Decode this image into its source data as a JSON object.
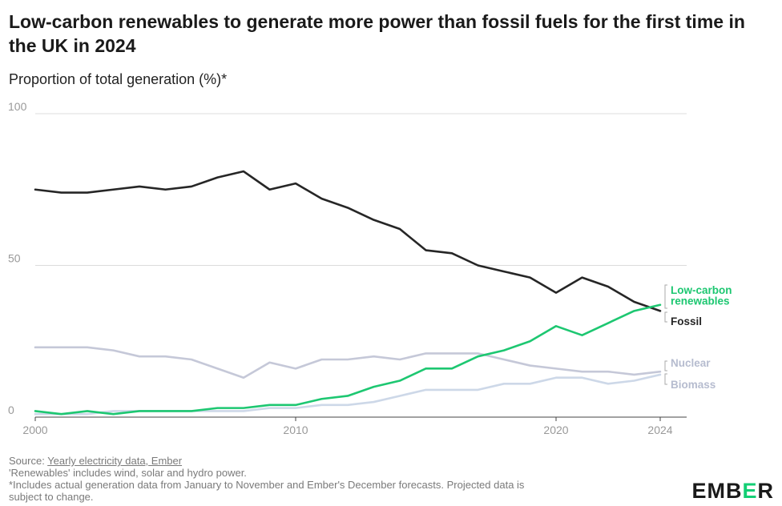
{
  "chart_data": {
    "type": "line",
    "title": "Low-carbon renewables to generate more power than fossil fuels for the first time in the UK in 2024",
    "subtitle": "Proportion of total generation (%)*",
    "xlabel": "",
    "ylabel": "",
    "xlim": [
      2000,
      2024
    ],
    "ylim": [
      0,
      100
    ],
    "x_ticks": [
      2000,
      2010,
      2020,
      2024
    ],
    "y_ticks": [
      0,
      50,
      100
    ],
    "grid": true,
    "x": [
      2000,
      2001,
      2002,
      2003,
      2004,
      2005,
      2006,
      2007,
      2008,
      2009,
      2010,
      2011,
      2012,
      2013,
      2014,
      2015,
      2016,
      2017,
      2018,
      2019,
      2020,
      2021,
      2022,
      2023,
      2024
    ],
    "series": [
      {
        "name": "Fossil",
        "color": "#262626",
        "label_lines": [
          "Fossil"
        ],
        "values": [
          75,
          74,
          74,
          75,
          76,
          75,
          76,
          79,
          81,
          75,
          77,
          72,
          69,
          65,
          62,
          55,
          54,
          50,
          48,
          46,
          41,
          46,
          43,
          38,
          35
        ]
      },
      {
        "name": "Low-carbon renewables",
        "color": "#1dc771",
        "label_lines": [
          "Low-carbon",
          "renewables"
        ],
        "values": [
          2,
          1,
          2,
          1,
          2,
          2,
          2,
          3,
          3,
          4,
          4,
          6,
          7,
          10,
          12,
          16,
          16,
          20,
          22,
          25,
          30,
          27,
          31,
          35,
          37
        ]
      },
      {
        "name": "Nuclear",
        "color": "#c5c8d8",
        "label_lines": [
          "Nuclear"
        ],
        "values": [
          23,
          23,
          23,
          22,
          20,
          20,
          19,
          16,
          13,
          18,
          16,
          19,
          19,
          20,
          19,
          21,
          21,
          21,
          19,
          17,
          16,
          15,
          15,
          14,
          15
        ]
      },
      {
        "name": "Biomass",
        "color": "#cdd8e8",
        "label_lines": [
          "Biomass"
        ],
        "values": [
          1,
          1,
          1,
          2,
          2,
          2,
          2,
          2,
          2,
          3,
          3,
          4,
          4,
          5,
          7,
          9,
          9,
          9,
          11,
          11,
          13,
          13,
          11,
          12,
          14
        ]
      }
    ]
  },
  "notes": {
    "source_prefix": "Source: ",
    "source_link": "Yearly electricity data, Ember",
    "line1": "'Renewables' includes wind, solar and hydro power.",
    "line2": "*Includes actual generation data from January to November and Ember's December forecasts. Projected data is",
    "line3": "subject to change."
  },
  "logo": {
    "part1": "EMB",
    "part2": "E",
    "part3": "R"
  }
}
